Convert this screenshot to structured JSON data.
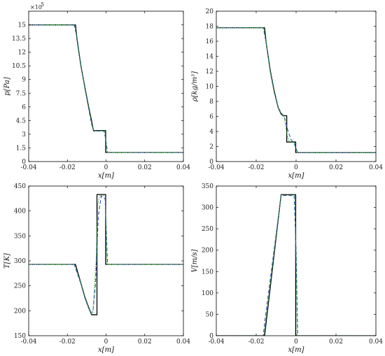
{
  "chart_data": [
    {
      "type": "line",
      "xlabel": "x[m]",
      "ylabel": "p[Pa]",
      "multiplier": "×10",
      "multiplier_exp": "5",
      "xlim": [
        -0.04,
        0.04
      ],
      "ylim": [
        0,
        16.5
      ],
      "xticks": [
        -0.04,
        -0.02,
        0,
        0.02,
        0.04
      ],
      "xtick_labels": [
        "-0.04",
        "-0.02",
        "0",
        "0.02",
        "0.04"
      ],
      "yticks": [
        0,
        1.5,
        3,
        4.5,
        6,
        7.5,
        9,
        10.5,
        12,
        13.5,
        15
      ],
      "ytick_labels": [
        "0",
        "1.5",
        "3",
        "4.5",
        "6",
        "7.5",
        "9",
        "10.5",
        "12",
        "13.5",
        "15"
      ],
      "series": [
        {
          "style": "black-solid",
          "x": [
            -0.04,
            -0.0158,
            -0.015,
            -0.013,
            -0.011,
            -0.009,
            -0.0075,
            -0.0065,
            -0.0065,
            -0.0002,
            -0.0002,
            0.04
          ],
          "y": [
            15,
            15,
            13.4,
            10.5,
            8.2,
            6.0,
            4.5,
            3.4,
            3.4,
            3.4,
            1.0,
            1.0
          ]
        },
        {
          "style": "blue-dashed",
          "x": [
            -0.04,
            -0.0165,
            -0.015,
            -0.013,
            -0.011,
            -0.009,
            -0.0075,
            -0.0062,
            -0.005,
            -0.001,
            0.0,
            0.0008,
            0.04
          ],
          "y": [
            15,
            15,
            13.6,
            10.6,
            8.1,
            5.8,
            4.1,
            3.3,
            3.35,
            3.35,
            2.2,
            1.0,
            1.0
          ]
        },
        {
          "style": "green-dotted",
          "x": [
            -0.04,
            -0.0162,
            -0.015,
            -0.013,
            -0.011,
            -0.009,
            -0.0075,
            -0.0063,
            -0.005,
            -0.0007,
            0.0001,
            0.0006,
            0.04
          ],
          "y": [
            15,
            15,
            13.5,
            10.5,
            8.1,
            5.9,
            4.3,
            3.35,
            3.38,
            3.38,
            1.8,
            1.0,
            1.0
          ]
        }
      ]
    },
    {
      "type": "line",
      "xlabel": "x[m]",
      "ylabel": "ρ[kg/m³]",
      "xlim": [
        -0.04,
        0.04
      ],
      "ylim": [
        0,
        20
      ],
      "xticks": [
        -0.04,
        -0.02,
        0,
        0.02,
        0.04
      ],
      "xtick_labels": [
        "-0.04",
        "-0.02",
        "0",
        "0.02",
        "0.04"
      ],
      "yticks": [
        0,
        2,
        4,
        6,
        8,
        10,
        12,
        14,
        16,
        18,
        20
      ],
      "ytick_labels": [
        "0",
        "2",
        "4",
        "6",
        "8",
        "10",
        "12",
        "14",
        "16",
        "18",
        "20"
      ],
      "series": [
        {
          "style": "black-solid",
          "x": [
            -0.04,
            -0.0158,
            -0.015,
            -0.013,
            -0.011,
            -0.009,
            -0.0075,
            -0.0065,
            -0.0065,
            -0.0047,
            -0.0047,
            -0.0002,
            -0.0002,
            0.04
          ],
          "y": [
            17.8,
            17.8,
            15.8,
            12.2,
            9.4,
            7.2,
            6.3,
            6.1,
            6.1,
            6.1,
            2.6,
            2.6,
            1.2,
            1.2
          ]
        },
        {
          "style": "blue-dashed",
          "x": [
            -0.04,
            -0.0165,
            -0.015,
            -0.013,
            -0.011,
            -0.009,
            -0.0072,
            -0.0058,
            -0.0042,
            -0.0025,
            -0.001,
            0.0008,
            0.04
          ],
          "y": [
            17.8,
            17.8,
            15.8,
            12.0,
            9.2,
            7.2,
            6.4,
            5.9,
            4.2,
            2.9,
            2.4,
            1.2,
            1.2
          ]
        },
        {
          "style": "green-dotted",
          "x": [
            -0.04,
            -0.0162,
            -0.015,
            -0.013,
            -0.011,
            -0.009,
            -0.0074,
            -0.006,
            -0.0045,
            -0.0035,
            -0.0008,
            0.0005,
            0.04
          ],
          "y": [
            17.8,
            17.8,
            15.8,
            12.1,
            9.3,
            7.2,
            6.3,
            6.0,
            3.5,
            2.7,
            2.5,
            1.2,
            1.2
          ]
        }
      ]
    },
    {
      "type": "line",
      "xlabel": "x[m]",
      "ylabel": "T[K]",
      "xlim": [
        -0.04,
        0.04
      ],
      "ylim": [
        150,
        450
      ],
      "xticks": [
        -0.04,
        -0.02,
        0,
        0.02,
        0.04
      ],
      "xtick_labels": [
        "-0.04",
        "-0.02",
        "0",
        "0.02",
        "0.04"
      ],
      "yticks": [
        150,
        200,
        250,
        300,
        350,
        400,
        450
      ],
      "ytick_labels": [
        "150",
        "200",
        "250",
        "300",
        "350",
        "400",
        "450"
      ],
      "series": [
        {
          "style": "black-solid",
          "x": [
            -0.04,
            -0.0158,
            -0.013,
            -0.011,
            -0.009,
            -0.0075,
            -0.0075,
            -0.0047,
            -0.0047,
            -0.0002,
            -0.0002,
            0.04
          ],
          "y": [
            293,
            293,
            255,
            228,
            207,
            192,
            192,
            192,
            433,
            433,
            293,
            293
          ]
        },
        {
          "style": "blue-dashed",
          "x": [
            -0.04,
            -0.0165,
            -0.013,
            -0.011,
            -0.009,
            -0.0078,
            -0.0068,
            -0.0055,
            -0.004,
            -0.0025,
            -0.0005,
            0.0008,
            0.04
          ],
          "y": [
            293,
            293,
            254,
            226,
            205,
            196,
            199,
            250,
            390,
            430,
            425,
            293,
            293
          ]
        },
        {
          "style": "green-dotted",
          "x": [
            -0.04,
            -0.0162,
            -0.013,
            -0.011,
            -0.009,
            -0.0078,
            -0.0068,
            -0.0052,
            -0.0042,
            -0.003,
            -0.0004,
            0.0005,
            0.04
          ],
          "y": [
            293,
            293,
            255,
            227,
            206,
            193,
            195,
            300,
            415,
            432,
            430,
            293,
            293
          ]
        }
      ]
    },
    {
      "type": "line",
      "xlabel": "x[m]",
      "ylabel": "V[m/s]",
      "xlim": [
        -0.04,
        0.04
      ],
      "ylim": [
        0,
        350
      ],
      "xticks": [
        -0.04,
        -0.02,
        0,
        0.02,
        0.04
      ],
      "xtick_labels": [
        "-0.04",
        "-0.02",
        "0",
        "0.02",
        "0.04"
      ],
      "yticks": [
        0,
        50,
        100,
        150,
        200,
        250,
        300,
        350
      ],
      "ytick_labels": [
        "0",
        "50",
        "100",
        "150",
        "200",
        "250",
        "300",
        "350"
      ],
      "series": [
        {
          "style": "black-solid",
          "x": [
            -0.04,
            -0.0158,
            -0.0075,
            -0.0002,
            -0.0002,
            0.04
          ],
          "y": [
            0,
            0,
            330,
            330,
            0,
            0
          ]
        },
        {
          "style": "blue-dashed",
          "x": [
            -0.04,
            -0.0165,
            -0.0155,
            -0.0075,
            -0.001,
            0.0,
            0.0008,
            0.04
          ],
          "y": [
            0,
            0,
            40,
            328,
            328,
            200,
            0,
            0
          ]
        },
        {
          "style": "green-dotted",
          "x": [
            -0.04,
            -0.0162,
            -0.0155,
            -0.0075,
            -0.0006,
            0.0001,
            0.0005,
            0.04
          ],
          "y": [
            0,
            0,
            25,
            329,
            329,
            150,
            0,
            0
          ]
        }
      ]
    }
  ]
}
